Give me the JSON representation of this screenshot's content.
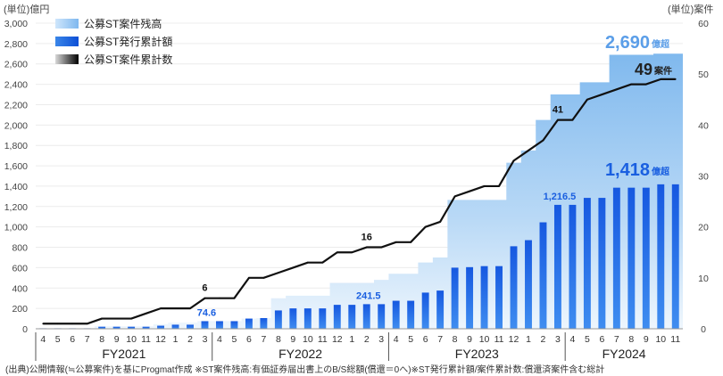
{
  "chart_data": {
    "type": "bar+area+line",
    "left_axis_unit": "(単位)億円",
    "right_axis_unit": "(単位)案件",
    "left_ylim": [
      0,
      3000
    ],
    "left_ticks": [
      "0",
      "200",
      "400",
      "600",
      "800",
      "1,000",
      "1,200",
      "1,400",
      "1,600",
      "1,800",
      "2,000",
      "2,200",
      "2,400",
      "2,600",
      "2,800",
      "3,000"
    ],
    "right_ylim": [
      0,
      60
    ],
    "right_ticks": [
      "0",
      "10",
      "20",
      "30",
      "40",
      "50",
      "60"
    ],
    "months": [
      "4",
      "5",
      "6",
      "7",
      "8",
      "9",
      "10",
      "11",
      "12",
      "1",
      "2",
      "3",
      "4",
      "5",
      "6",
      "7",
      "8",
      "9",
      "10",
      "11",
      "12",
      "1",
      "2",
      "3",
      "4",
      "5",
      "6",
      "7",
      "8",
      "9",
      "10",
      "11",
      "12",
      "1",
      "2",
      "3",
      "4",
      "5",
      "6",
      "7",
      "8",
      "9",
      "10",
      "11"
    ],
    "fiscal_years": [
      "FY2021",
      "FY2022",
      "FY2023",
      "FY2024"
    ],
    "series": [
      {
        "name": "公募ST案件残高",
        "kind": "area",
        "values": [
          5,
          5,
          5,
          5,
          25,
          25,
          25,
          25,
          45,
          60,
          60,
          75,
          75,
          75,
          100,
          105,
          300,
          325,
          325,
          325,
          450,
          450,
          450,
          480,
          540,
          540,
          650,
          700,
          1265,
          1265,
          1265,
          1265,
          1630,
          1750,
          2050,
          2300,
          2300,
          2420,
          2420,
          2690,
          2690,
          2690,
          2700,
          2700
        ]
      },
      {
        "name": "公募ST発行累計額",
        "kind": "bar",
        "values": [
          5,
          5,
          5,
          5,
          20,
          20,
          20,
          20,
          30,
          40,
          40,
          74.6,
          74.6,
          74.6,
          100,
          105,
          180,
          200,
          200,
          200,
          235,
          235,
          241.5,
          241.5,
          275,
          275,
          355,
          375,
          600,
          605,
          615,
          615,
          810,
          870,
          1045,
          1216.5,
          1216.5,
          1285,
          1285,
          1385,
          1385,
          1385,
          1418,
          1418
        ]
      },
      {
        "name": "公募ST案件累計数",
        "kind": "line",
        "values": [
          1,
          1,
          1,
          1,
          2,
          2,
          2,
          3,
          4,
          4,
          4,
          6,
          6,
          6,
          10,
          10,
          11,
          12,
          13,
          13,
          15,
          15,
          16,
          16,
          17,
          17,
          20,
          21,
          26,
          27,
          28,
          28,
          33,
          35,
          37,
          41,
          41,
          45,
          46,
          47,
          48,
          48,
          49,
          49
        ]
      }
    ],
    "annotations": {
      "bar_labels": [
        {
          "index": 11,
          "text": "74.6"
        },
        {
          "index": 22,
          "text": "241.5"
        },
        {
          "index": 35,
          "text": "1,216.5"
        }
      ],
      "line_labels": [
        {
          "index": 11,
          "text": "6"
        },
        {
          "index": 22,
          "text": "16"
        },
        {
          "index": 35,
          "text": "41"
        }
      ],
      "area_end": {
        "value": "2,690",
        "unit": "億超"
      },
      "bar_end": {
        "value": "1,418",
        "unit": "億超"
      },
      "line_end": {
        "value": "49",
        "unit": "案件"
      }
    },
    "colors": {
      "area_light": "#e6f2fc",
      "area_dark": "#86bcef",
      "bar_light": "#3f8bea",
      "bar_dark": "#0a4ed8",
      "line": "#111111",
      "accent_area": "#5b9ee8",
      "accent_bar": "#1a5fe0"
    }
  },
  "footnote": "(出典)公開情報(≒公募案件)を基にProgmat作成 ※ST案件残高:有価証券届出書上のB/S総額(償還＝0へ)※ST発行累計額/案件累計数:償還済案件含む総計"
}
